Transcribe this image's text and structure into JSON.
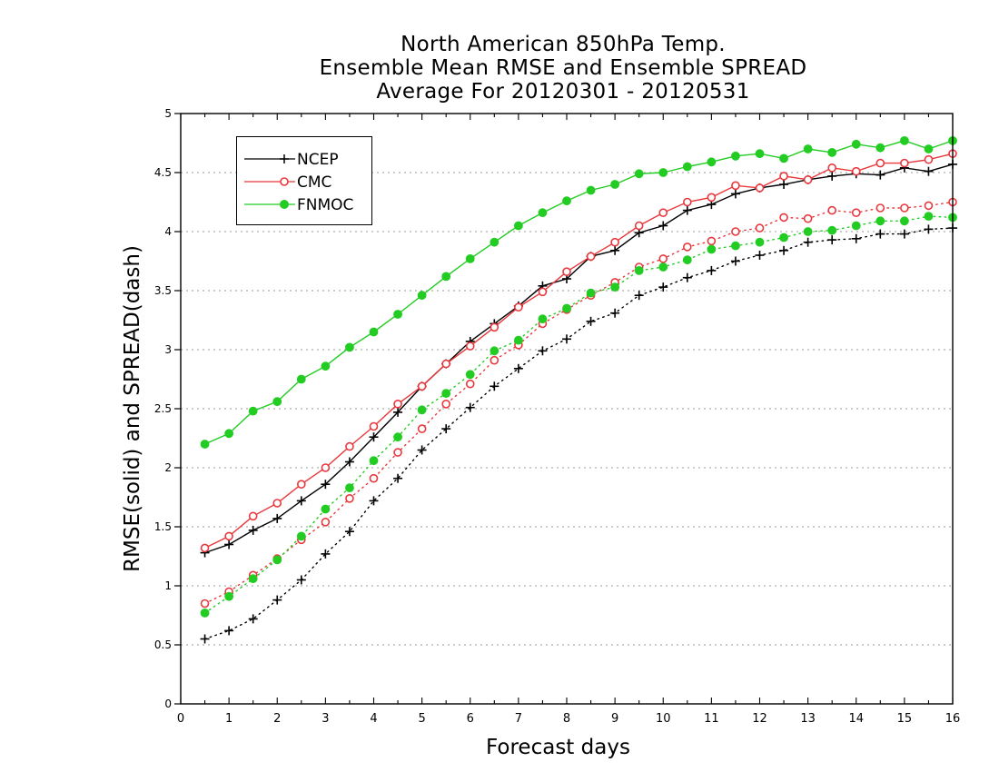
{
  "title": {
    "line1": "North American 850hPa Temp.",
    "line2": "Ensemble Mean RMSE and Ensemble SPREAD",
    "line3": "Average For 20120301 - 20120531"
  },
  "chart_data": {
    "type": "line",
    "title": "North American 850hPa Temp. Ensemble Mean RMSE and Ensemble SPREAD Average For 20120301 - 20120531",
    "xlabel": "Forecast days",
    "ylabel": "RMSE(solid) and SPREAD(dash)",
    "xlim": [
      0,
      16
    ],
    "ylim": [
      0,
      5
    ],
    "xticks": [
      "0",
      "1",
      "2",
      "3",
      "4",
      "5",
      "6",
      "7",
      "8",
      "9",
      "10",
      "11",
      "12",
      "13",
      "14",
      "15",
      "16"
    ],
    "yticks": [
      "0",
      "0.5",
      "1",
      "1.5",
      "2",
      "2.5",
      "3",
      "3.5",
      "4",
      "4.5",
      "5"
    ],
    "grid": "horizontal dotted",
    "legend_position": "top-left",
    "x": [
      0.5,
      1,
      1.5,
      2,
      2.5,
      3,
      3.5,
      4,
      4.5,
      5,
      5.5,
      6,
      6.5,
      7,
      7.5,
      8,
      8.5,
      9,
      9.5,
      10,
      10.5,
      11,
      11.5,
      12,
      12.5,
      13,
      13.5,
      14,
      14.5,
      15,
      15.5,
      16
    ],
    "series": [
      {
        "name": "NCEP",
        "style": "solid",
        "marker": "plus",
        "color": "#000000",
        "values": [
          1.28,
          1.35,
          1.47,
          1.57,
          1.72,
          1.86,
          2.05,
          2.26,
          2.47,
          2.69,
          2.88,
          3.07,
          3.22,
          3.37,
          3.54,
          3.6,
          3.79,
          3.84,
          3.99,
          4.05,
          4.18,
          4.23,
          4.32,
          4.37,
          4.4,
          4.44,
          4.47,
          4.49,
          4.48,
          4.54,
          4.51,
          4.57
        ]
      },
      {
        "name": "CMC",
        "style": "solid",
        "marker": "open-circle",
        "color": "#e8383d",
        "values": [
          1.32,
          1.42,
          1.59,
          1.7,
          1.86,
          2.0,
          2.18,
          2.35,
          2.54,
          2.69,
          2.88,
          3.03,
          3.19,
          3.36,
          3.49,
          3.66,
          3.79,
          3.91,
          4.05,
          4.16,
          4.25,
          4.29,
          4.39,
          4.37,
          4.47,
          4.44,
          4.54,
          4.51,
          4.58,
          4.58,
          4.61,
          4.66
        ]
      },
      {
        "name": "FNMOC",
        "style": "solid",
        "marker": "filled-circle",
        "color": "#22cc22",
        "values": [
          2.2,
          2.29,
          2.48,
          2.56,
          2.75,
          2.86,
          3.02,
          3.15,
          3.3,
          3.46,
          3.62,
          3.77,
          3.91,
          4.05,
          4.16,
          4.26,
          4.35,
          4.4,
          4.49,
          4.5,
          4.55,
          4.59,
          4.64,
          4.66,
          4.62,
          4.7,
          4.67,
          4.74,
          4.71,
          4.77,
          4.7,
          4.77
        ]
      },
      {
        "name": "NCEP",
        "style": "dotted",
        "marker": "plus",
        "color": "#000000",
        "values": [
          0.55,
          0.62,
          0.72,
          0.88,
          1.05,
          1.27,
          1.46,
          1.72,
          1.91,
          2.15,
          2.33,
          2.51,
          2.69,
          2.84,
          2.99,
          3.09,
          3.24,
          3.31,
          3.46,
          3.53,
          3.61,
          3.67,
          3.75,
          3.8,
          3.84,
          3.91,
          3.93,
          3.94,
          3.98,
          3.98,
          4.02,
          4.03
        ]
      },
      {
        "name": "CMC",
        "style": "dotted",
        "marker": "open-circle",
        "color": "#e8383d",
        "values": [
          0.85,
          0.95,
          1.09,
          1.23,
          1.39,
          1.54,
          1.74,
          1.91,
          2.13,
          2.33,
          2.54,
          2.71,
          2.91,
          3.04,
          3.22,
          3.34,
          3.46,
          3.57,
          3.7,
          3.77,
          3.87,
          3.92,
          4.0,
          4.03,
          4.12,
          4.11,
          4.18,
          4.16,
          4.2,
          4.2,
          4.22,
          4.25
        ]
      },
      {
        "name": "FNMOC",
        "style": "dotted",
        "marker": "filled-circle",
        "color": "#22cc22",
        "values": [
          0.77,
          0.91,
          1.06,
          1.22,
          1.42,
          1.65,
          1.83,
          2.06,
          2.26,
          2.49,
          2.63,
          2.79,
          2.99,
          3.08,
          3.26,
          3.35,
          3.48,
          3.53,
          3.67,
          3.7,
          3.76,
          3.85,
          3.88,
          3.91,
          3.95,
          4.0,
          4.01,
          4.05,
          4.09,
          4.09,
          4.13,
          4.12
        ]
      }
    ]
  },
  "legend": {
    "items": [
      {
        "label": "NCEP",
        "marker": "plus",
        "color": "#000000"
      },
      {
        "label": "CMC",
        "marker": "open-circle",
        "color": "#e8383d"
      },
      {
        "label": "FNMOC",
        "marker": "filled-circle",
        "color": "#22cc22"
      }
    ]
  }
}
